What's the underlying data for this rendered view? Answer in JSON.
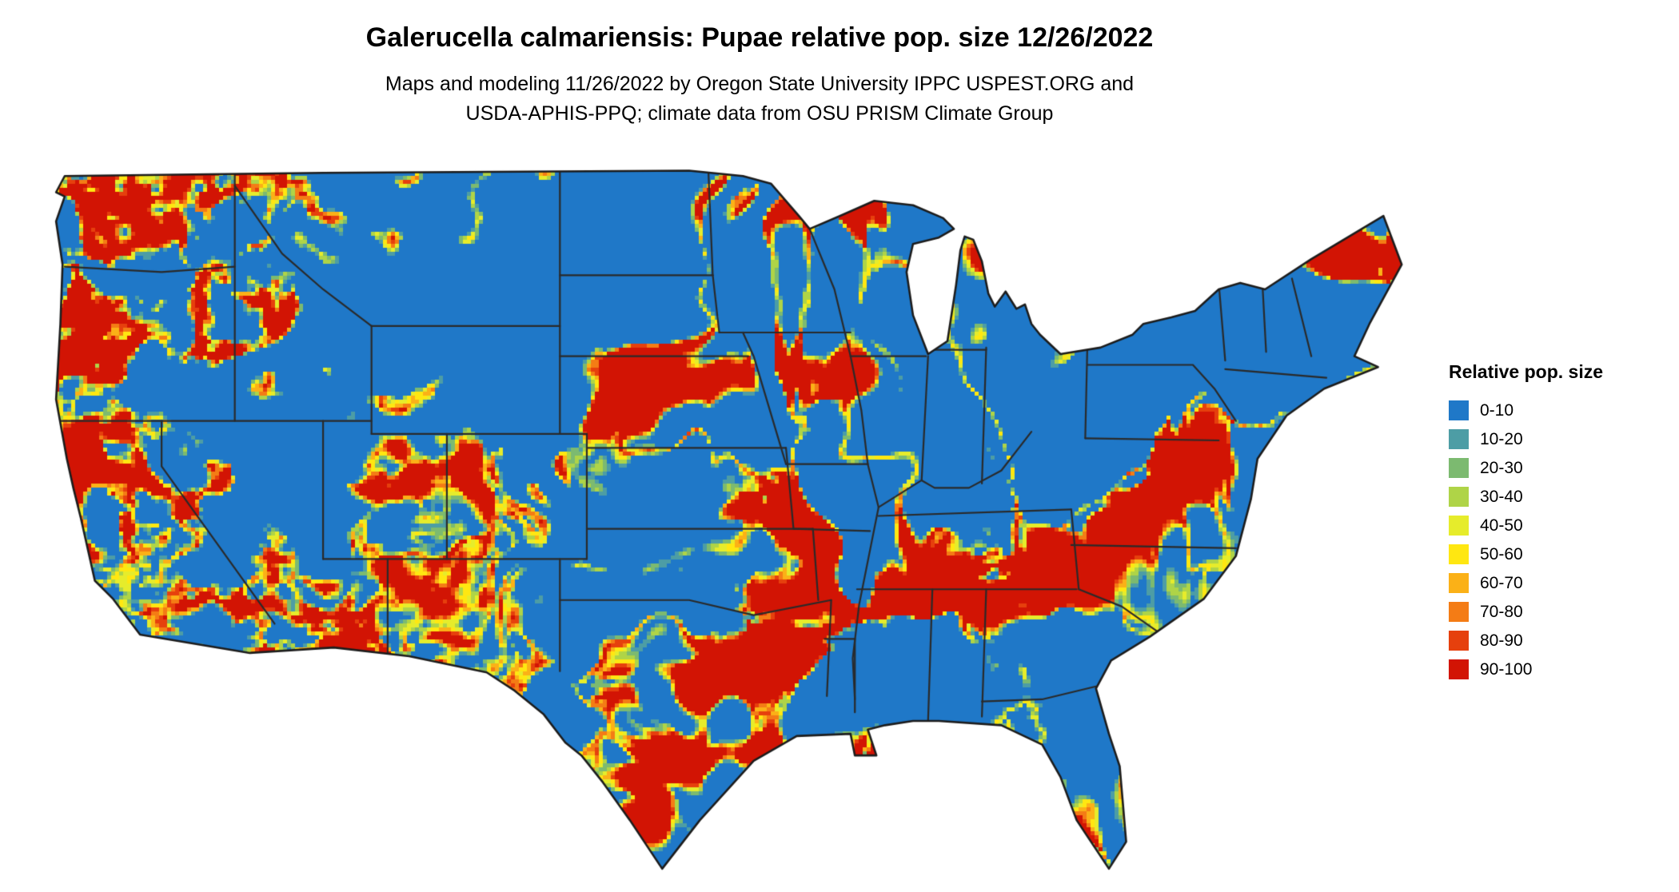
{
  "header": {
    "title": "Galerucella calmariensis: Pupae relative pop. size 12/26/2022",
    "subtitle_line1": "Maps and modeling 11/26/2022 by Oregon State University IPPC USPEST.ORG and",
    "subtitle_line2": "USDA-APHIS-PPQ; climate data from OSU PRISM Climate Group"
  },
  "map": {
    "alt": "Raster map of the continental United States colored by relative population size bins"
  },
  "legend": {
    "title": "Relative pop. size",
    "items": [
      {
        "label": "0-10",
        "color": "#1F78C8"
      },
      {
        "label": "10-20",
        "color": "#4D9DA5"
      },
      {
        "label": "20-30",
        "color": "#7CBA70"
      },
      {
        "label": "30-40",
        "color": "#AFD447"
      },
      {
        "label": "40-50",
        "color": "#E6EC2B"
      },
      {
        "label": "50-60",
        "color": "#FFE711"
      },
      {
        "label": "60-70",
        "color": "#FBB117"
      },
      {
        "label": "70-80",
        "color": "#F47C15"
      },
      {
        "label": "80-90",
        "color": "#E6400D"
      },
      {
        "label": "90-100",
        "color": "#D21404"
      }
    ]
  }
}
